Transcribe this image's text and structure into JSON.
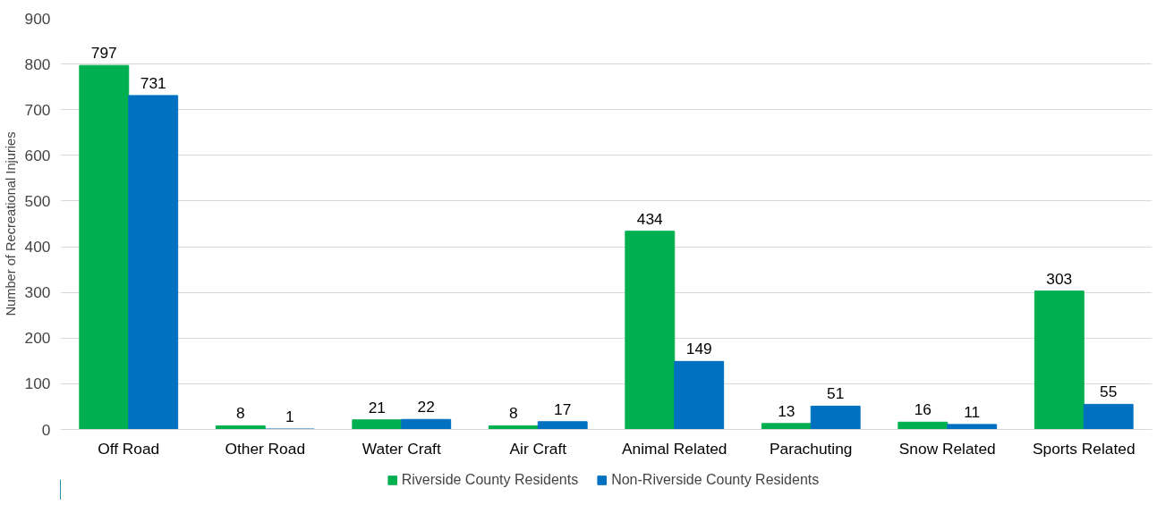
{
  "chart_data": {
    "type": "bar",
    "ylabel": "Number of Recreational Injuries",
    "categories": [
      "Off Road",
      "Other Road",
      "Water Craft",
      "Air Craft",
      "Animal Related",
      "Parachuting",
      "Snow Related",
      "Sports Related"
    ],
    "series": [
      {
        "name": "Riverside County Residents",
        "color": "#00b050",
        "values": [
          797,
          8,
          21,
          8,
          434,
          13,
          16,
          303
        ]
      },
      {
        "name": "Non-Riverside County Residents",
        "color": "#0070c0",
        "values": [
          731,
          1,
          22,
          17,
          149,
          51,
          11,
          55
        ]
      }
    ],
    "ylim": [
      0,
      900
    ],
    "yticks": [
      0,
      100,
      200,
      300,
      400,
      500,
      600,
      700,
      800,
      900
    ],
    "grid": "y",
    "legend": "bottom",
    "data_labels": true
  }
}
